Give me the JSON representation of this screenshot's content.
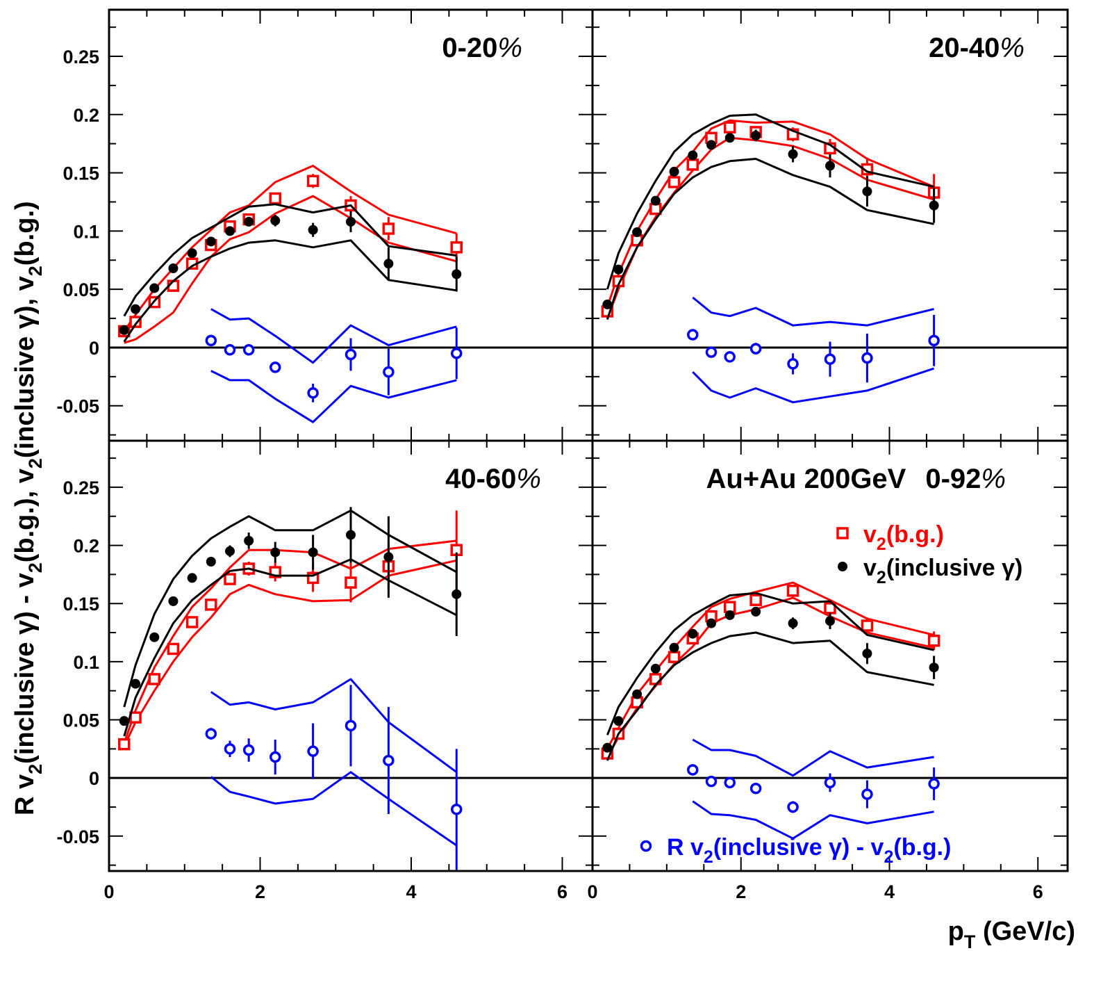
{
  "chart_data": {
    "type": "scatter",
    "layout": "2x2 panels with shared axes",
    "xlabel": "p_T (GeV/c)",
    "ylabel": "R v_2(inclusive γ) - v_2(b.g.),   v_2(inclusive γ),   v_2(b.g.)",
    "xlim": [
      0,
      6.4
    ],
    "ylim": [
      -0.08,
      0.29
    ],
    "x_ticks": [
      "0",
      "2",
      "4",
      "6"
    ],
    "y_ticks": [
      "-0.05",
      "0",
      "0.05",
      "0.1",
      "0.15",
      "0.2",
      "0.25"
    ],
    "system_label": "Au+Au 200GeV",
    "legend": {
      "placement": "lower-right panel",
      "entries": [
        {
          "key": "bg",
          "prefix": "v",
          "sub": "2",
          "suffix": "(b.g.)",
          "color": "#ff0000",
          "marker": "open-square"
        },
        {
          "key": "incl",
          "prefix": "v",
          "sub": "2",
          "suffix": "(inclusive γ)",
          "color": "#000000",
          "marker": "filled-circle"
        },
        {
          "key": "diff",
          "prefix": "R v",
          "sub": "2",
          "suffix": "(inclusive γ) - v",
          "sub2": "2",
          "suffix2": "(b.g.)",
          "color": "#0000ff",
          "marker": "open-circle"
        }
      ]
    },
    "colors": {
      "bg": "#ff0000",
      "incl": "#000000",
      "diff": "#0000ff"
    },
    "panels": [
      {
        "label_value": "0-20",
        "label_unit": "%",
        "bg": {
          "x": [
            0.2,
            0.35,
            0.6,
            0.85,
            1.1,
            1.35,
            1.6,
            1.85,
            2.2,
            2.7,
            3.2,
            3.7,
            4.6
          ],
          "y": [
            0.014,
            0.022,
            0.039,
            0.053,
            0.072,
            0.088,
            0.104,
            0.11,
            0.128,
            0.143,
            0.122,
            0.102,
            0.086
          ],
          "err": [
            0.003,
            0.003,
            0.003,
            0.003,
            0.003,
            0.003,
            0.003,
            0.004,
            0.005,
            0.006,
            0.008,
            0.01,
            0.012
          ],
          "band_upper": [
            0.014,
            0.028,
            0.05,
            0.068,
            0.086,
            0.101,
            0.116,
            0.122,
            0.142,
            0.156,
            0.134,
            0.114,
            0.098
          ],
          "band_lower": [
            0.004,
            0.007,
            0.018,
            0.03,
            0.055,
            0.078,
            0.093,
            0.099,
            0.115,
            0.13,
            0.111,
            0.09,
            0.074
          ]
        },
        "incl": {
          "x": [
            0.2,
            0.35,
            0.6,
            0.85,
            1.1,
            1.35,
            1.6,
            1.85,
            2.2,
            2.7,
            3.2,
            3.7,
            4.6
          ],
          "y": [
            0.015,
            0.033,
            0.051,
            0.068,
            0.081,
            0.091,
            0.1,
            0.108,
            0.109,
            0.101,
            0.108,
            0.072,
            0.063
          ],
          "err": [
            0.003,
            0.003,
            0.003,
            0.003,
            0.003,
            0.003,
            0.003,
            0.004,
            0.005,
            0.006,
            0.009,
            0.014,
            0.015
          ],
          "band_upper": [
            0.027,
            0.044,
            0.063,
            0.08,
            0.094,
            0.103,
            0.112,
            0.121,
            0.123,
            0.116,
            0.122,
            0.087,
            0.079
          ],
          "band_lower": [
            0.005,
            0.02,
            0.04,
            0.057,
            0.07,
            0.078,
            0.085,
            0.09,
            0.092,
            0.086,
            0.092,
            0.058,
            0.049
          ]
        },
        "diff": {
          "x": [
            1.35,
            1.6,
            1.85,
            2.2,
            2.7,
            3.2,
            3.7,
            4.6
          ],
          "y": [
            0.006,
            -0.002,
            -0.002,
            -0.017,
            -0.039,
            -0.006,
            -0.021,
            -0.005
          ],
          "err": [
            0.003,
            0.003,
            0.003,
            0.004,
            0.008,
            0.014,
            0.02,
            0.022
          ],
          "band_upper": [
            0.033,
            0.024,
            0.025,
            0.01,
            -0.013,
            0.019,
            0.002,
            0.018
          ],
          "band_lower": [
            -0.02,
            -0.028,
            -0.028,
            -0.044,
            -0.064,
            -0.033,
            -0.043,
            -0.028
          ]
        }
      },
      {
        "label_value": "20-40",
        "label_unit": "%",
        "bg": {
          "x": [
            0.2,
            0.35,
            0.6,
            0.85,
            1.1,
            1.35,
            1.6,
            1.85,
            2.2,
            2.7,
            3.2,
            3.7,
            4.6
          ],
          "y": [
            0.031,
            0.057,
            0.092,
            0.119,
            0.142,
            0.157,
            0.18,
            0.189,
            0.185,
            0.183,
            0.171,
            0.153,
            0.133
          ],
          "err": [
            0.003,
            0.003,
            0.003,
            0.003,
            0.003,
            0.003,
            0.003,
            0.004,
            0.004,
            0.006,
            0.008,
            0.01,
            0.016
          ],
          "band_upper": [
            0.035,
            0.063,
            0.1,
            0.127,
            0.152,
            0.168,
            0.188,
            0.195,
            0.193,
            0.194,
            0.183,
            0.162,
            0.138
          ],
          "band_lower": [
            0.025,
            0.05,
            0.086,
            0.112,
            0.133,
            0.152,
            0.17,
            0.18,
            0.178,
            0.173,
            0.162,
            0.144,
            0.127
          ]
        },
        "incl": {
          "x": [
            0.2,
            0.35,
            0.6,
            0.85,
            1.1,
            1.35,
            1.6,
            1.85,
            2.2,
            2.7,
            3.2,
            3.7,
            4.6
          ],
          "y": [
            0.037,
            0.067,
            0.099,
            0.126,
            0.151,
            0.165,
            0.174,
            0.18,
            0.182,
            0.166,
            0.156,
            0.134,
            0.122
          ],
          "err": [
            0.003,
            0.003,
            0.003,
            0.003,
            0.003,
            0.003,
            0.003,
            0.004,
            0.005,
            0.007,
            0.01,
            0.013,
            0.015
          ],
          "band_upper": [
            0.05,
            0.081,
            0.115,
            0.143,
            0.168,
            0.183,
            0.192,
            0.199,
            0.2,
            0.186,
            0.174,
            0.151,
            0.138
          ],
          "band_lower": [
            0.024,
            0.054,
            0.086,
            0.11,
            0.132,
            0.146,
            0.155,
            0.16,
            0.162,
            0.148,
            0.138,
            0.118,
            0.106
          ]
        },
        "diff": {
          "x": [
            1.35,
            1.6,
            1.85,
            2.2,
            2.7,
            3.2,
            3.7,
            4.6
          ],
          "y": [
            0.011,
            -0.004,
            -0.008,
            -0.001,
            -0.014,
            -0.01,
            -0.009,
            0.006
          ],
          "err": [
            0.003,
            0.003,
            0.004,
            0.005,
            0.009,
            0.015,
            0.021,
            0.022
          ],
          "band_upper": [
            0.043,
            0.03,
            0.027,
            0.034,
            0.019,
            0.022,
            0.019,
            0.033
          ],
          "band_lower": [
            -0.021,
            -0.037,
            -0.043,
            -0.035,
            -0.047,
            -0.042,
            -0.037,
            -0.018
          ]
        }
      },
      {
        "label_value": "40-60",
        "label_unit": "%",
        "bg": {
          "x": [
            0.2,
            0.35,
            0.6,
            0.85,
            1.1,
            1.35,
            1.6,
            1.85,
            2.2,
            2.7,
            3.2,
            3.7,
            4.6
          ],
          "y": [
            0.029,
            0.052,
            0.085,
            0.111,
            0.134,
            0.149,
            0.171,
            0.18,
            0.177,
            0.172,
            0.168,
            0.182,
            0.196
          ],
          "err": [
            0.003,
            0.003,
            0.003,
            0.003,
            0.003,
            0.004,
            0.004,
            0.006,
            0.008,
            0.012,
            0.017,
            0.02,
            0.034
          ],
          "band_upper": [
            0.03,
            0.058,
            0.095,
            0.122,
            0.147,
            0.163,
            0.181,
            0.196,
            0.196,
            0.194,
            0.18,
            0.197,
            0.204
          ],
          "band_lower": [
            0.027,
            0.048,
            0.075,
            0.1,
            0.121,
            0.138,
            0.158,
            0.166,
            0.158,
            0.152,
            0.153,
            0.174,
            0.187
          ]
        },
        "incl": {
          "x": [
            0.2,
            0.35,
            0.6,
            0.85,
            1.1,
            1.35,
            1.6,
            1.85,
            2.2,
            2.7,
            3.2,
            3.7,
            4.6
          ],
          "y": [
            0.049,
            0.081,
            0.121,
            0.152,
            0.172,
            0.186,
            0.195,
            0.204,
            0.194,
            0.194,
            0.209,
            0.19,
            0.158
          ],
          "err": [
            0.003,
            0.003,
            0.003,
            0.003,
            0.004,
            0.004,
            0.005,
            0.007,
            0.009,
            0.015,
            0.024,
            0.035,
            0.036
          ],
          "band_upper": [
            0.061,
            0.097,
            0.141,
            0.171,
            0.191,
            0.206,
            0.216,
            0.225,
            0.213,
            0.213,
            0.23,
            0.209,
            0.177
          ],
          "band_lower": [
            0.036,
            0.069,
            0.103,
            0.133,
            0.153,
            0.166,
            0.178,
            0.18,
            0.174,
            0.174,
            0.188,
            0.17,
            0.14
          ]
        },
        "diff": {
          "x": [
            1.35,
            1.6,
            1.85,
            2.2,
            2.7,
            3.2,
            3.7,
            4.6
          ],
          "y": [
            0.038,
            0.025,
            0.024,
            0.018,
            0.023,
            0.045,
            0.015,
            -0.027
          ],
          "err": [
            0.005,
            0.007,
            0.01,
            0.015,
            0.024,
            0.035,
            0.046,
            0.052
          ],
          "band_upper": [
            0.074,
            0.063,
            0.065,
            0.059,
            0.065,
            0.085,
            0.048,
            0.005
          ],
          "band_lower": [
            0.001,
            -0.012,
            -0.016,
            -0.022,
            -0.018,
            0.005,
            -0.018,
            -0.058
          ]
        }
      },
      {
        "label_value": "0-92",
        "label_unit": "%",
        "bg": {
          "x": [
            0.2,
            0.35,
            0.6,
            0.85,
            1.1,
            1.35,
            1.6,
            1.85,
            2.2,
            2.7,
            3.2,
            3.7,
            4.6
          ],
          "y": [
            0.021,
            0.038,
            0.065,
            0.085,
            0.104,
            0.12,
            0.139,
            0.147,
            0.153,
            0.161,
            0.146,
            0.131,
            0.118
          ],
          "err": [
            0.002,
            0.002,
            0.002,
            0.002,
            0.003,
            0.003,
            0.003,
            0.003,
            0.004,
            0.004,
            0.006,
            0.007,
            0.008
          ],
          "band_upper": [
            0.025,
            0.043,
            0.072,
            0.092,
            0.112,
            0.13,
            0.147,
            0.154,
            0.16,
            0.168,
            0.153,
            0.137,
            0.123
          ],
          "band_lower": [
            0.018,
            0.035,
            0.06,
            0.079,
            0.098,
            0.113,
            0.133,
            0.14,
            0.145,
            0.155,
            0.139,
            0.125,
            0.112
          ]
        },
        "incl": {
          "x": [
            0.2,
            0.35,
            0.6,
            0.85,
            1.1,
            1.35,
            1.6,
            1.85,
            2.2,
            2.7,
            3.2,
            3.7,
            4.6
          ],
          "y": [
            0.026,
            0.049,
            0.072,
            0.094,
            0.112,
            0.124,
            0.133,
            0.14,
            0.143,
            0.133,
            0.135,
            0.107,
            0.095
          ],
          "err": [
            0.002,
            0.002,
            0.002,
            0.002,
            0.003,
            0.003,
            0.003,
            0.003,
            0.004,
            0.005,
            0.007,
            0.009,
            0.01
          ],
          "band_upper": [
            0.037,
            0.061,
            0.086,
            0.108,
            0.127,
            0.14,
            0.149,
            0.157,
            0.159,
            0.15,
            0.152,
            0.123,
            0.11
          ],
          "band_lower": [
            0.015,
            0.038,
            0.058,
            0.08,
            0.097,
            0.108,
            0.116,
            0.122,
            0.125,
            0.116,
            0.118,
            0.091,
            0.08
          ]
        },
        "diff": {
          "x": [
            1.35,
            1.6,
            1.85,
            2.2,
            2.7,
            3.2,
            3.7,
            4.6
          ],
          "y": [
            0.007,
            -0.003,
            -0.004,
            -0.009,
            -0.025,
            -0.004,
            -0.014,
            -0.005
          ],
          "err": [
            0.003,
            0.003,
            0.003,
            0.003,
            0.005,
            0.008,
            0.012,
            0.014
          ],
          "band_upper": [
            0.033,
            0.024,
            0.024,
            0.019,
            0.002,
            0.023,
            0.009,
            0.018
          ],
          "band_lower": [
            -0.02,
            -0.031,
            -0.032,
            -0.036,
            -0.052,
            -0.032,
            -0.039,
            -0.029
          ]
        }
      }
    ]
  }
}
